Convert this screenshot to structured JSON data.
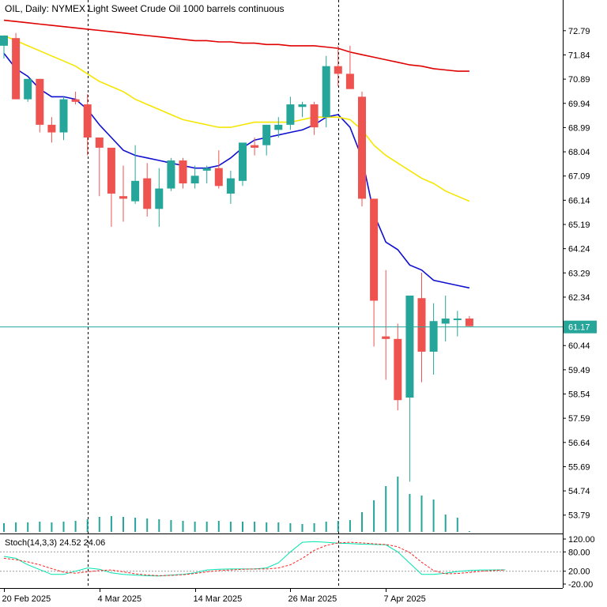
{
  "chart_data": [
    {
      "type": "candlestick",
      "title": "OIL, Daily:  NYMEX Light Sweet Crude Oil 1000 barrels continuous",
      "ylim": [
        53.1,
        73.25
      ],
      "y_ticks": [
        "72.79",
        "71.84",
        "70.89",
        "69.94",
        "68.99",
        "68.04",
        "67.09",
        "66.14",
        "65.19",
        "64.24",
        "63.29",
        "62.34",
        "61.39",
        "60.44",
        "59.49",
        "58.54",
        "57.59",
        "56.64",
        "55.69",
        "54.74",
        "53.79"
      ],
      "x_ticks": [
        {
          "index": 0,
          "label": "20 Feb 2025"
        },
        {
          "index": 8,
          "label": "4 Mar 2025"
        },
        {
          "index": 16,
          "label": "14 Mar 2025"
        },
        {
          "index": 24,
          "label": "26 Mar 2025"
        },
        {
          "index": 32,
          "label": "7 Apr 2025"
        }
      ],
      "current_price": "61.17",
      "current_price_value": 61.17,
      "dashed_vertical_markers_at_index": [
        7,
        28
      ],
      "candles": [
        {
          "o": 72.2,
          "h": 72.5,
          "l": 71.7,
          "c": 72.6
        },
        {
          "o": 72.5,
          "h": 72.7,
          "l": 70.1,
          "c": 70.1
        },
        {
          "o": 70.1,
          "h": 70.9,
          "l": 70.0,
          "c": 70.9
        },
        {
          "o": 70.9,
          "h": 70.9,
          "l": 68.8,
          "c": 69.1
        },
        {
          "o": 69.1,
          "h": 69.4,
          "l": 68.4,
          "c": 68.8
        },
        {
          "o": 68.8,
          "h": 70.2,
          "l": 68.5,
          "c": 70.1
        },
        {
          "o": 70.1,
          "h": 70.4,
          "l": 69.9,
          "c": 70.0
        },
        {
          "o": 69.9,
          "h": 70.3,
          "l": 67.9,
          "c": 68.6
        },
        {
          "o": 68.6,
          "h": 68.6,
          "l": 66.3,
          "c": 68.2
        },
        {
          "o": 68.2,
          "h": 68.2,
          "l": 65.1,
          "c": 66.4
        },
        {
          "o": 66.3,
          "h": 67.5,
          "l": 65.3,
          "c": 66.2
        },
        {
          "o": 66.1,
          "h": 68.3,
          "l": 66.0,
          "c": 66.9
        },
        {
          "o": 67.0,
          "h": 67.6,
          "l": 65.5,
          "c": 65.8
        },
        {
          "o": 65.8,
          "h": 67.4,
          "l": 65.1,
          "c": 66.6
        },
        {
          "o": 66.6,
          "h": 67.8,
          "l": 66.5,
          "c": 67.7
        },
        {
          "o": 67.7,
          "h": 67.8,
          "l": 66.6,
          "c": 66.8
        },
        {
          "o": 66.8,
          "h": 67.5,
          "l": 66.6,
          "c": 67.1
        },
        {
          "o": 67.3,
          "h": 67.5,
          "l": 66.8,
          "c": 67.4
        },
        {
          "o": 67.4,
          "h": 68.1,
          "l": 66.6,
          "c": 66.7
        },
        {
          "o": 66.4,
          "h": 67.3,
          "l": 66.0,
          "c": 67.0
        },
        {
          "o": 66.9,
          "h": 68.2,
          "l": 66.7,
          "c": 68.4
        },
        {
          "o": 68.3,
          "h": 68.6,
          "l": 67.9,
          "c": 68.2
        },
        {
          "o": 68.3,
          "h": 69.1,
          "l": 67.9,
          "c": 69.1
        },
        {
          "o": 68.9,
          "h": 69.4,
          "l": 68.6,
          "c": 69.1
        },
        {
          "o": 69.1,
          "h": 70.2,
          "l": 68.9,
          "c": 69.9
        },
        {
          "o": 69.8,
          "h": 70.0,
          "l": 69.4,
          "c": 69.9
        },
        {
          "o": 69.9,
          "h": 70.0,
          "l": 68.7,
          "c": 69.0
        },
        {
          "o": 69.4,
          "h": 71.8,
          "l": 69.0,
          "c": 71.4
        },
        {
          "o": 71.4,
          "h": 72.2,
          "l": 70.6,
          "c": 71.1
        },
        {
          "o": 71.1,
          "h": 72.2,
          "l": 70.6,
          "c": 70.5
        },
        {
          "o": 70.2,
          "h": 70.4,
          "l": 65.9,
          "c": 66.2
        },
        {
          "o": 66.2,
          "h": 66.2,
          "l": 60.4,
          "c": 62.2
        },
        {
          "o": 60.8,
          "h": 63.4,
          "l": 59.1,
          "c": 60.7
        },
        {
          "o": 60.7,
          "h": 61.3,
          "l": 57.9,
          "c": 58.3
        },
        {
          "o": 58.4,
          "h": 62.4,
          "l": 55.1,
          "c": 62.4
        },
        {
          "o": 62.3,
          "h": 63.3,
          "l": 59.0,
          "c": 60.2
        },
        {
          "o": 60.2,
          "h": 62.1,
          "l": 59.3,
          "c": 61.4
        },
        {
          "o": 61.3,
          "h": 62.4,
          "l": 60.6,
          "c": 61.5
        },
        {
          "o": 61.5,
          "h": 61.8,
          "l": 60.8,
          "c": 61.5
        },
        {
          "o": 61.5,
          "h": 61.6,
          "l": 61.2,
          "c": 61.2
        }
      ],
      "volumes": [
        11,
        12,
        12,
        13,
        12,
        13,
        14,
        16,
        19,
        20,
        19,
        18,
        17,
        16,
        15,
        14,
        13,
        13,
        14,
        13,
        13,
        13,
        12,
        12,
        11,
        10,
        11,
        13,
        14,
        15,
        25,
        40,
        58,
        70,
        48,
        46,
        41,
        22,
        18,
        1
      ],
      "moving_averages": [
        {
          "color": "#1010d0",
          "values": [
            71.9,
            71.3,
            71.0,
            70.5,
            70.2,
            70.2,
            70.1,
            69.7,
            69.1,
            68.6,
            68.1,
            67.9,
            67.8,
            67.7,
            67.6,
            67.5,
            67.4,
            67.4,
            67.5,
            67.8,
            68.2,
            68.5,
            68.6,
            68.7,
            68.8,
            68.9,
            69.1,
            69.4,
            69.5,
            69.0,
            67.8,
            65.6,
            64.5,
            64.2,
            63.6,
            63.4,
            63.0,
            62.9,
            62.8,
            62.7
          ]
        },
        {
          "color": "#f5e600",
          "values": [
            72.6,
            72.4,
            72.2,
            72.0,
            71.8,
            71.6,
            71.4,
            71.1,
            70.8,
            70.6,
            70.4,
            70.1,
            69.9,
            69.7,
            69.5,
            69.3,
            69.2,
            69.1,
            69.0,
            69.0,
            69.1,
            69.2,
            69.2,
            69.2,
            69.2,
            69.3,
            69.4,
            69.4,
            69.4,
            69.3,
            68.9,
            68.3,
            67.9,
            67.6,
            67.3,
            67.0,
            66.8,
            66.5,
            66.3,
            66.1
          ]
        },
        {
          "color": "#e00000",
          "values": [
            73.2,
            73.15,
            73.1,
            73.05,
            73.0,
            72.95,
            72.9,
            72.85,
            72.8,
            72.75,
            72.7,
            72.65,
            72.6,
            72.55,
            72.5,
            72.45,
            72.4,
            72.4,
            72.35,
            72.35,
            72.3,
            72.3,
            72.25,
            72.25,
            72.2,
            72.2,
            72.2,
            72.15,
            72.1,
            71.95,
            71.85,
            71.75,
            71.65,
            71.55,
            71.45,
            71.4,
            71.3,
            71.25,
            71.2,
            71.2
          ]
        }
      ],
      "up_color": "#26a69a",
      "down_color": "#ef5350"
    },
    {
      "type": "line",
      "title": "Stoch(14,3,3) 24.52 24.06",
      "ylim": [
        -20,
        120
      ],
      "y_ticks": [
        "120.00",
        "80.00",
        "20.00",
        "-20.00"
      ],
      "levels": [
        80,
        20
      ],
      "series": [
        {
          "color": "#00e5b0",
          "style": "solid",
          "values": [
            66,
            60,
            40,
            25,
            10,
            10,
            20,
            30,
            26,
            15,
            10,
            8,
            6,
            5,
            8,
            10,
            15,
            24,
            26,
            27,
            27,
            27,
            30,
            46,
            80,
            110,
            112,
            110,
            107,
            106,
            104,
            103,
            102,
            80,
            45,
            10,
            10,
            14,
            19,
            22,
            24,
            24,
            24.52
          ]
        },
        {
          "color": "#ff2020",
          "style": "dashed",
          "values": [
            60,
            56,
            49,
            40,
            28,
            17,
            14,
            18,
            22,
            24,
            18,
            12,
            8,
            6,
            7,
            9,
            13,
            18,
            22,
            24,
            26,
            27,
            27,
            30,
            40,
            60,
            85,
            100,
            108,
            110,
            108,
            105,
            103,
            96,
            78,
            48,
            22,
            12,
            13,
            16,
            20,
            22,
            24.06
          ]
        }
      ]
    }
  ]
}
